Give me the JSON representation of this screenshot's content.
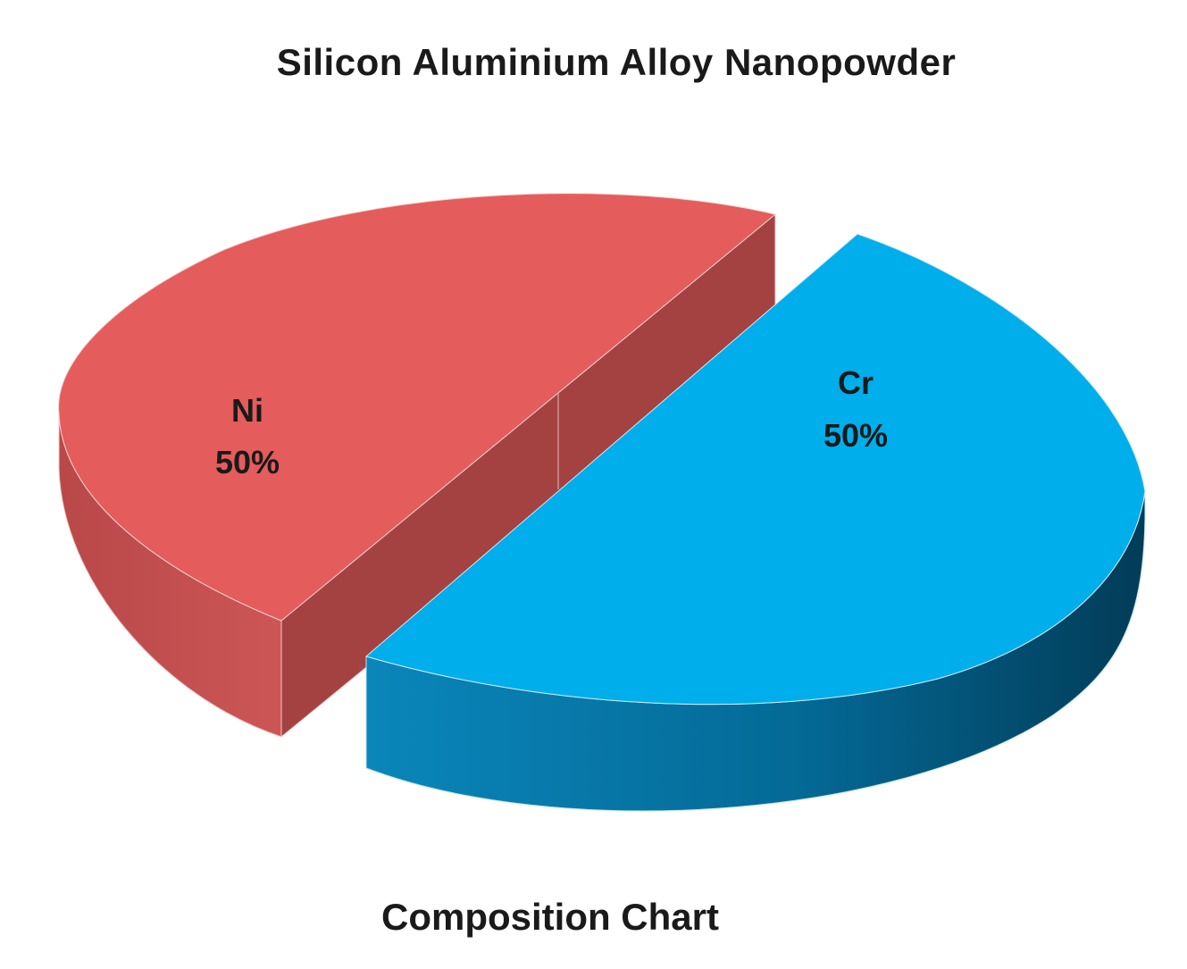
{
  "chart_data": {
    "type": "pie",
    "title": "Silicon Aluminium Alloy Nanopowder",
    "footer": "Composition Chart",
    "categories": [
      "Ni",
      "Cr"
    ],
    "values": [
      50,
      50
    ],
    "value_labels": [
      "50%",
      "50%"
    ],
    "colors": {
      "Ni": "#e45c5c",
      "Cr": "#00aeeb"
    },
    "style": "3d-exploded"
  }
}
